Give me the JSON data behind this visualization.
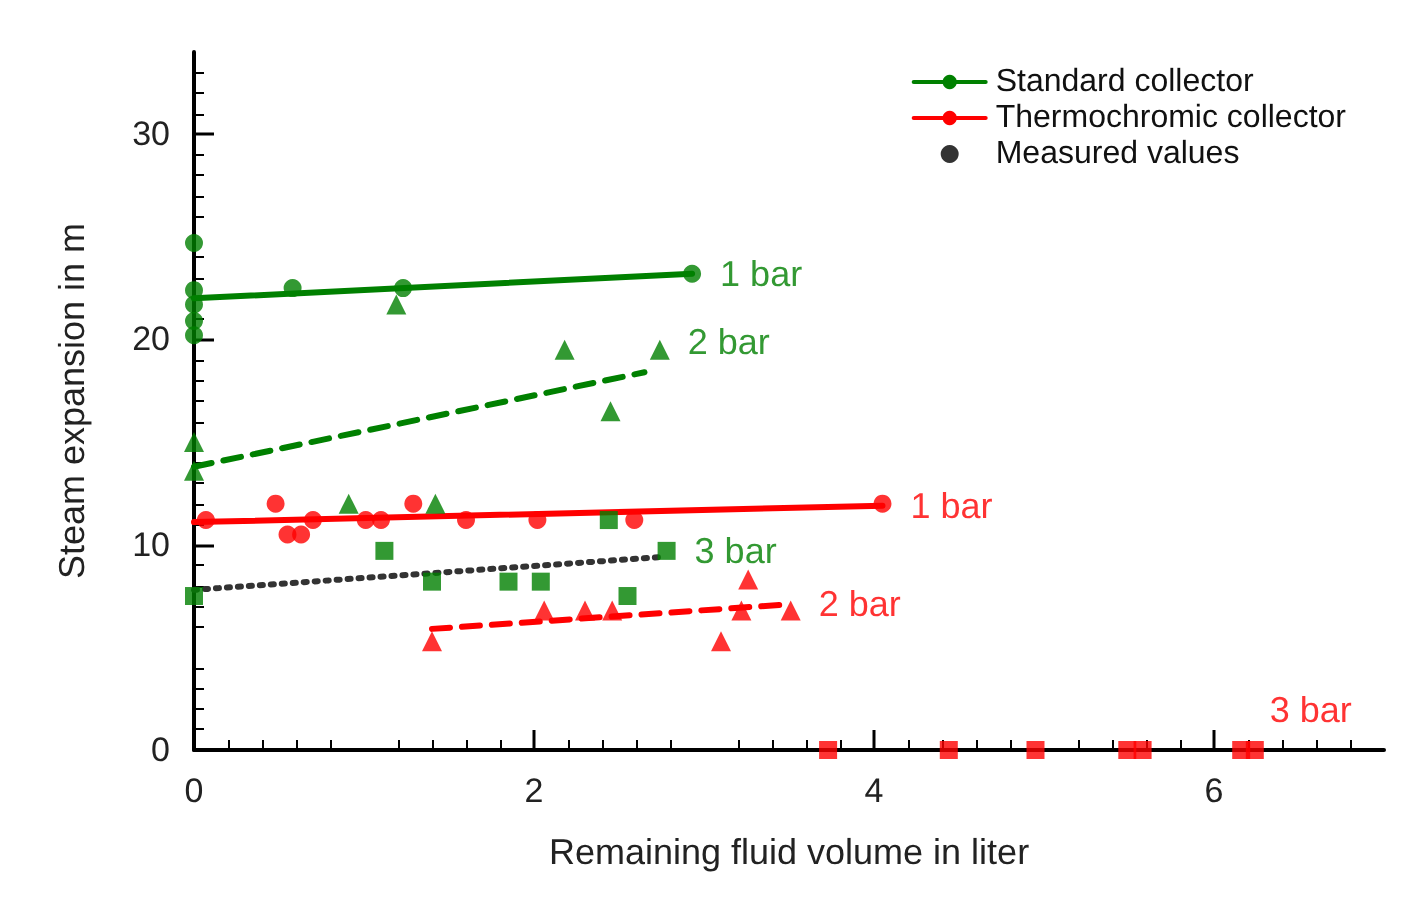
{
  "chart_data": {
    "type": "line",
    "xlabel": "Remaining fluid volume in liter",
    "ylabel": "Steam expansion in m",
    "xlim": [
      0,
      7
    ],
    "xticks": [
      0,
      2,
      4,
      6
    ],
    "ylim": [
      0,
      34
    ],
    "yticks": [
      0,
      10,
      20,
      30
    ],
    "grid": false,
    "legend": "top right",
    "series": [
      {
        "name": "Standard collector",
        "color": "#008000",
        "line_style": "solid",
        "marker": "none",
        "x": [
          0,
          2.93
        ],
        "values": [
          22.0,
          23.2
        ]
      },
      {
        "color": "#008000",
        "line_style": "dashed",
        "marker": "none",
        "x": [
          0,
          2.65
        ],
        "values": [
          13.8,
          18.4
        ]
      },
      {
        "color": "#333333",
        "line_style": "dotted",
        "marker": "none",
        "x": [
          0,
          2.75
        ],
        "values": [
          7.8,
          9.4
        ]
      },
      {
        "name": "Thermochromic collector",
        "color": "#ff0000",
        "line_style": "solid",
        "marker": "none",
        "x": [
          0,
          4.05
        ],
        "values": [
          11.1,
          11.9
        ]
      },
      {
        "color": "#ff0000",
        "line_style": "dashed",
        "marker": "none",
        "x": [
          1.4,
          3.51
        ],
        "values": [
          5.9,
          7.1
        ]
      },
      {
        "name": "Measured values",
        "type": "scatter",
        "color": "#000000",
        "marker": "circle"
      },
      {
        "type": "scatter",
        "color": "#008000",
        "marker": "circle",
        "x": [
          0,
          0,
          0,
          0,
          0,
          0.58,
          1.23,
          2.93
        ],
        "values": [
          24.7,
          22.4,
          21.7,
          20.9,
          20.2,
          22.5,
          22.5,
          23.2
        ]
      },
      {
        "type": "scatter",
        "color": "#008000",
        "marker": "triangle",
        "x": [
          1.19,
          2.18,
          2.74,
          2.45,
          0,
          0,
          0.91,
          1.42
        ],
        "values": [
          21.7,
          19.5,
          19.5,
          16.5,
          15.0,
          13.6,
          12.0,
          12.0
        ]
      },
      {
        "type": "scatter",
        "color": "#008000",
        "marker": "square",
        "x": [
          0,
          1.12,
          1.4,
          1.85,
          2.04,
          2.44,
          2.55,
          2.78
        ],
        "values": [
          7.5,
          9.7,
          8.2,
          8.2,
          8.2,
          11.2,
          7.5,
          9.7
        ]
      },
      {
        "type": "scatter",
        "color": "#ff0000",
        "marker": "circle",
        "x": [
          0.07,
          0.48,
          0.55,
          0.63,
          0.7,
          1.01,
          1.1,
          1.29,
          1.6,
          2.02,
          2.59,
          4.05
        ],
        "values": [
          11.2,
          12.0,
          10.5,
          10.5,
          11.2,
          11.2,
          11.2,
          12.0,
          11.2,
          11.2,
          11.2,
          12.0
        ]
      },
      {
        "type": "scatter",
        "color": "#ff0000",
        "marker": "triangle",
        "x": [
          1.4,
          2.06,
          2.3,
          2.46,
          3.1,
          3.26,
          3.22,
          3.51
        ],
        "values": [
          5.3,
          6.8,
          6.8,
          6.8,
          5.3,
          8.3,
          6.8,
          6.8
        ]
      },
      {
        "type": "scatter",
        "color": "#ff0000",
        "marker": "square",
        "x": [
          3.73,
          4.44,
          4.95,
          5.49,
          5.58,
          6.16,
          6.24
        ],
        "values": [
          0,
          0,
          0,
          0,
          0,
          0,
          0
        ]
      }
    ],
    "annotations": [
      {
        "text": "1 bar",
        "x": 2.93,
        "y": 23.2
      },
      {
        "text": "2 bar",
        "x": 2.74,
        "y": 19.5
      },
      {
        "text": "3 bar",
        "x": 2.78,
        "y": 9.7
      },
      {
        "text": "1 bar",
        "x": 4.05,
        "y": 11.9
      },
      {
        "text": "2 bar",
        "x": 3.51,
        "y": 7.1
      },
      {
        "text": "3 bar",
        "x": 6.24,
        "y": 0
      }
    ]
  }
}
